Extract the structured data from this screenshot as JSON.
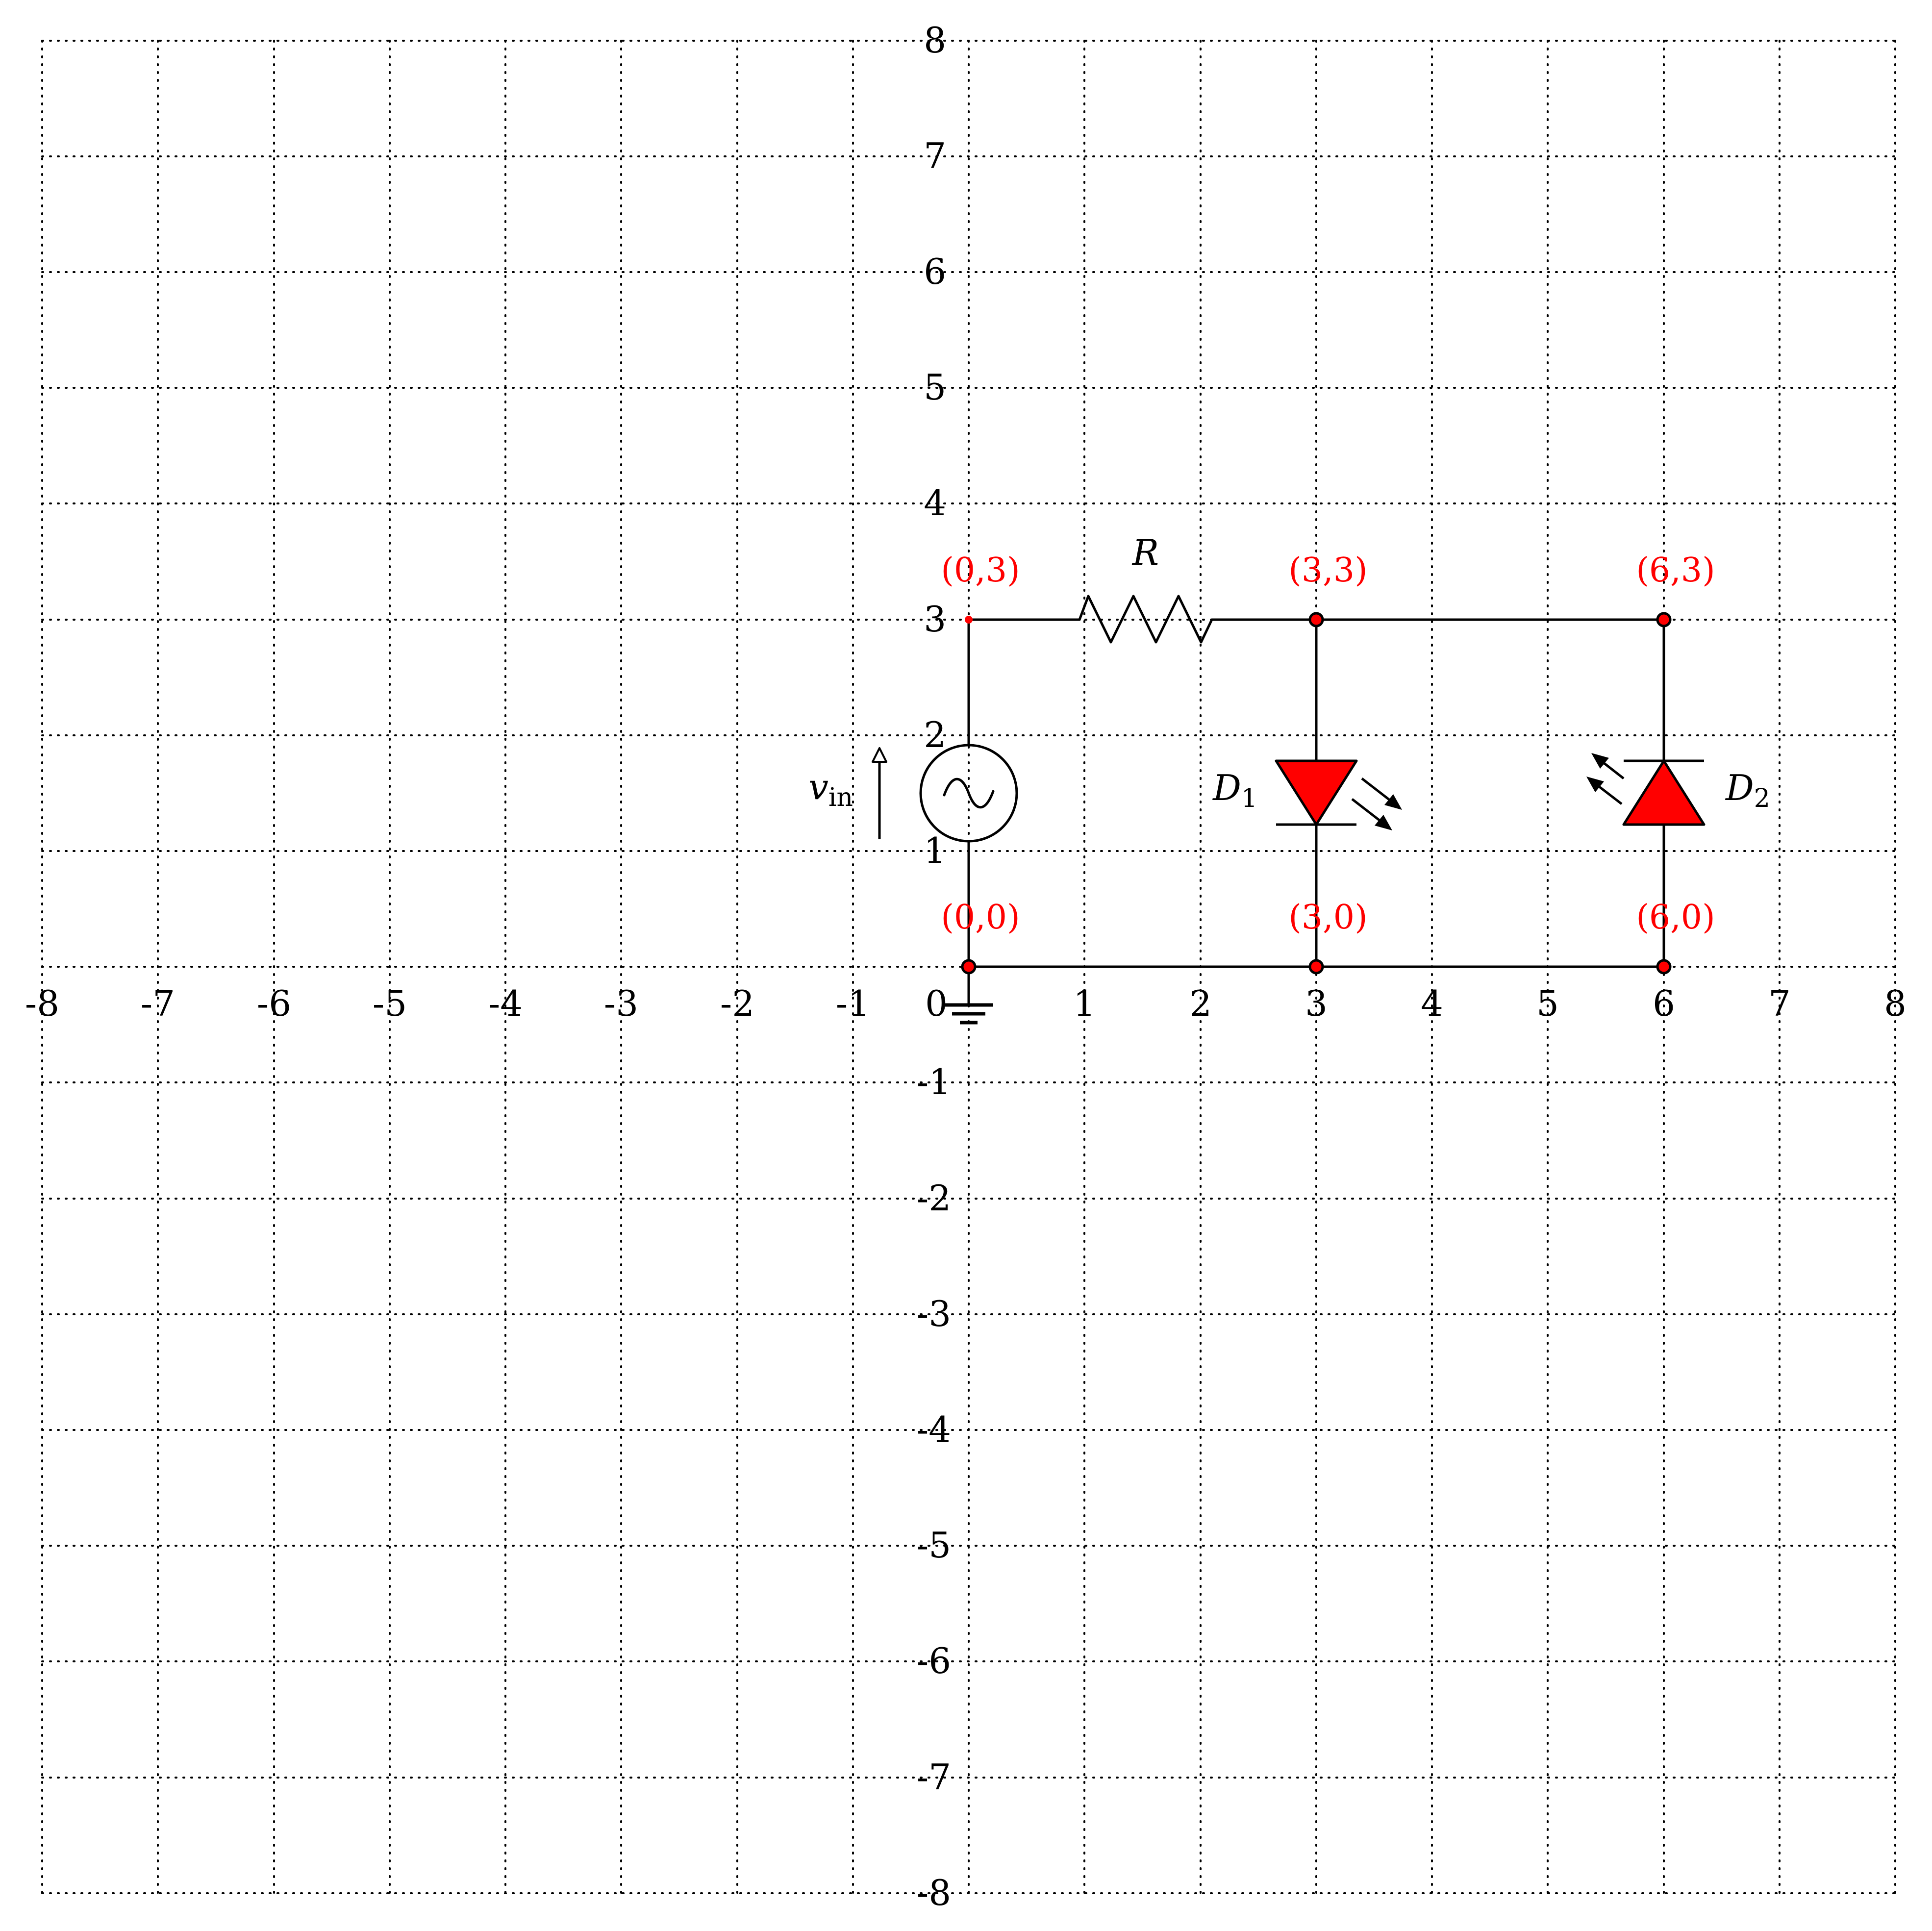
{
  "colors": {
    "background": "#ffffff",
    "grid": "#000000",
    "wire": "#000000",
    "accent": "#ff0000"
  },
  "axes": {
    "x_ticks": [
      "-8",
      "-7",
      "-6",
      "-5",
      "-4",
      "-3",
      "-2",
      "-1",
      "0",
      "1",
      "2",
      "3",
      "4",
      "5",
      "6",
      "7",
      "8"
    ],
    "y_ticks": [
      "8",
      "7",
      "6",
      "5",
      "4",
      "3",
      "2",
      "1",
      "-1",
      "-2",
      "-3",
      "-4",
      "-5",
      "-6",
      "-7",
      "-8"
    ]
  },
  "nodes": {
    "n03": "(0,3)",
    "n33": "(3,3)",
    "n63": "(6,3)",
    "n00": "(0,0)",
    "n30": "(3,0)",
    "n60": "(6,0)"
  },
  "components": {
    "resistor": {
      "label": "R"
    },
    "source": {
      "label": "v",
      "label_sub": "in"
    },
    "diode1": {
      "label": "D",
      "label_sub": "1",
      "type": "led-emitting"
    },
    "diode2": {
      "label": "D",
      "label_sub": "2",
      "type": "photodiode"
    },
    "ground": {
      "icon": "ground-icon"
    }
  }
}
